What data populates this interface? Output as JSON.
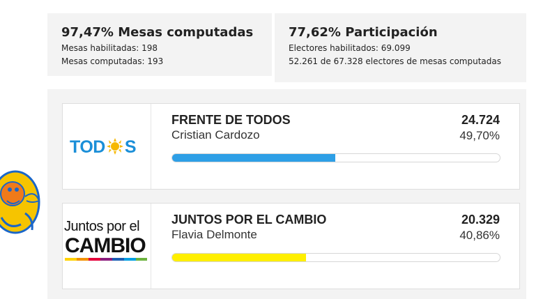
{
  "stats": {
    "mesas": {
      "title": "97,47% Mesas computadas",
      "line1": "Mesas habilitadas: 198",
      "line2": "Mesas computadas: 193"
    },
    "participacion": {
      "title": "77,62% Participación",
      "line1": "Electores habilitados: 69.099",
      "line2": "52.261 de 67.328 electores de mesas computadas"
    }
  },
  "results": [
    {
      "logo_text": "TOD S",
      "logo_icon": "sun-icon",
      "party": "FRENTE DE TODOS",
      "candidate": "Cristian Cardozo",
      "votes": "24.724",
      "percent_label": "49,70%",
      "percent": 49.7,
      "bar_color": "#2e9fe6"
    },
    {
      "logo_line1": "Juntos por el",
      "logo_line2": "CAMBIO",
      "party": "JUNTOS POR EL CAMBIO",
      "candidate": "Flavia Delmonte",
      "votes": "20.329",
      "percent_label": "40,86%",
      "percent": 40.86,
      "bar_color": "#ffef00"
    }
  ],
  "colors": {
    "panel_bg": "#f3f3f3",
    "todos_blue": "#1b8fd8",
    "todos_sun": "#f6b800",
    "jxc_yellow": "#ffef00"
  },
  "mascot_icon": "crab-mascot-icon"
}
